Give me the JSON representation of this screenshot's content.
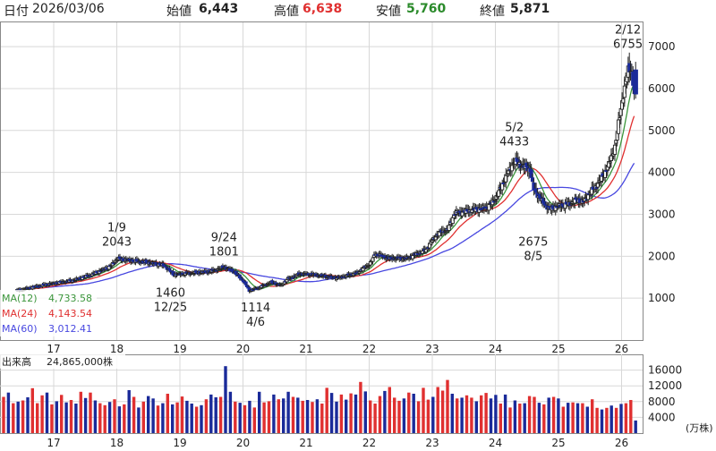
{
  "header": {
    "date_label": "日付",
    "date": "2026/03/06",
    "open_label": "始値",
    "open": "6,443",
    "high_label": "高値",
    "high": "6,638",
    "low_label": "安値",
    "low": "5,760",
    "close_label": "終値",
    "close": "5,871"
  },
  "colors": {
    "up": "#ffffff",
    "down": "#1a2a99",
    "ma12": "#3c963c",
    "ma24": "#e03030",
    "ma60": "#4848e0",
    "vol_up": "#e03030",
    "vol_down": "#1a2a99",
    "high_value": "#e03030",
    "low_value": "#2a8a2a"
  },
  "legend": {
    "ma12_label": "MA(12)",
    "ma12_value": "4,733.58",
    "ma24_label": "MA(24)",
    "ma24_value": "4,143.54",
    "ma60_label": "MA(60)",
    "ma60_value": "3,012.41"
  },
  "volume_panel": {
    "label": "出来高",
    "value": "24,865,000株",
    "unit": "(万株)"
  },
  "chart_data": [
    {
      "type": "candlestick",
      "ylim": [
        0,
        7600
      ],
      "y_ticks": [
        1000,
        2000,
        3000,
        4000,
        5000,
        6000,
        7000
      ],
      "x_ticks": [
        "17",
        "18",
        "19",
        "20",
        "21",
        "22",
        "23",
        "24",
        "25",
        "26"
      ],
      "annotations": [
        {
          "date": "1/9",
          "value": "2043",
          "t": 1.0,
          "v": 2043,
          "side": "above"
        },
        {
          "date": "12/25",
          "value": "1460",
          "t": 1.85,
          "v": 1460,
          "side": "below"
        },
        {
          "date": "9/24",
          "value": "1801",
          "t": 2.7,
          "v": 1801,
          "side": "above"
        },
        {
          "date": "4/6",
          "value": "1114",
          "t": 3.2,
          "v": 1114,
          "side": "below"
        },
        {
          "date": "5/2",
          "value": "4433",
          "t": 7.3,
          "v": 4433,
          "side": "above"
        },
        {
          "date": "8/5",
          "value": "2675",
          "t": 7.6,
          "v": 2675,
          "side": "below"
        },
        {
          "date": "2/12",
          "value": "6755",
          "t": 9.1,
          "v": 6755,
          "side": "above"
        }
      ],
      "close_path": [
        [
          -0.6,
          1180
        ],
        [
          -0.1,
          1330
        ],
        [
          0.3,
          1420
        ],
        [
          0.6,
          1560
        ],
        [
          0.9,
          1760
        ],
        [
          1.0,
          1940
        ],
        [
          1.2,
          1900
        ],
        [
          1.5,
          1850
        ],
        [
          1.75,
          1780
        ],
        [
          1.9,
          1560
        ],
        [
          2.2,
          1600
        ],
        [
          2.5,
          1640
        ],
        [
          2.7,
          1740
        ],
        [
          2.85,
          1640
        ],
        [
          3.0,
          1420
        ],
        [
          3.1,
          1180
        ],
        [
          3.25,
          1250
        ],
        [
          3.45,
          1380
        ],
        [
          3.6,
          1300
        ],
        [
          3.7,
          1450
        ],
        [
          3.9,
          1580
        ],
        [
          4.1,
          1560
        ],
        [
          4.3,
          1520
        ],
        [
          4.5,
          1480
        ],
        [
          4.8,
          1600
        ],
        [
          5.0,
          1800
        ],
        [
          5.1,
          2060
        ],
        [
          5.3,
          1950
        ],
        [
          5.6,
          1950
        ],
        [
          5.75,
          2050
        ],
        [
          5.9,
          2150
        ],
        [
          6.0,
          2380
        ],
        [
          6.1,
          2550
        ],
        [
          6.25,
          2650
        ],
        [
          6.35,
          3020
        ],
        [
          6.5,
          3060
        ],
        [
          6.7,
          3120
        ],
        [
          6.85,
          3150
        ],
        [
          6.95,
          3270
        ],
        [
          7.05,
          3520
        ],
        [
          7.15,
          3850
        ],
        [
          7.3,
          4280
        ],
        [
          7.45,
          4140
        ],
        [
          7.55,
          4070
        ],
        [
          7.6,
          3620
        ],
        [
          7.7,
          3400
        ],
        [
          7.85,
          3120
        ],
        [
          8.0,
          3200
        ],
        [
          8.15,
          3240
        ],
        [
          8.3,
          3340
        ],
        [
          8.4,
          3300
        ],
        [
          8.5,
          3520
        ],
        [
          8.6,
          3680
        ],
        [
          8.7,
          3900
        ],
        [
          8.8,
          4200
        ],
        [
          8.9,
          4650
        ],
        [
          8.95,
          5150
        ],
        [
          9.0,
          5650
        ],
        [
          9.05,
          6020
        ],
        [
          9.1,
          6450
        ],
        [
          9.15,
          6500
        ],
        [
          9.2,
          5900
        ]
      ],
      "volume": {
        "ylim": [
          0,
          20000
        ],
        "y_ticks": [
          4000,
          8000,
          12000,
          16000
        ],
        "values": [
          9200,
          10300,
          7600,
          8000,
          8300,
          9100,
          11400,
          7600,
          9600,
          10300,
          7300,
          8100,
          9700,
          7800,
          8400,
          7500,
          10500,
          8900,
          10300,
          8300,
          7600,
          7100,
          7900,
          8600,
          6800,
          7300,
          10900,
          9200,
          6500,
          8000,
          9400,
          8800,
          7000,
          7600,
          10000,
          7300,
          7800,
          9300,
          8200,
          7500,
          6700,
          7100,
          8600,
          9800,
          9100,
          9200,
          17000,
          10500,
          8000,
          7700,
          7100,
          8200,
          6500,
          10500,
          7800,
          8100,
          9800,
          8600,
          8800,
          10500,
          9200,
          9000,
          8200,
          8400,
          7900,
          8600,
          7500,
          11500,
          10200,
          8000,
          9800,
          8500,
          10100,
          9800,
          13000,
          10600,
          8300,
          7500,
          9400,
          10700,
          11700,
          9000,
          8200,
          8800,
          10300,
          10000,
          8100,
          11500,
          8500,
          9200,
          11700,
          10800,
          13500,
          10000,
          8800,
          9000,
          9600,
          9000,
          8100,
          9600,
          10200,
          8800,
          9700,
          7500,
          9800,
          6500,
          8300,
          7500,
          7600,
          9400,
          9200,
          7700,
          7300,
          9000,
          9200,
          8800,
          6700,
          7700,
          7800,
          7600,
          7600,
          6700,
          8600,
          6400,
          6000,
          6400,
          7000,
          6400,
          7400,
          7600,
          8400,
          3200
        ],
        "up_pattern": [
          1,
          0,
          1,
          0,
          1,
          0,
          1,
          1,
          1,
          0,
          1,
          0,
          1,
          0,
          1,
          0,
          1,
          0,
          1,
          0,
          1,
          1,
          0,
          1,
          0,
          1,
          0,
          1,
          0,
          1,
          0,
          0,
          1,
          0,
          1,
          0,
          1,
          1,
          0,
          0,
          1,
          0,
          1,
          0,
          0,
          1,
          0,
          0,
          1,
          0,
          1,
          0,
          1,
          0,
          1,
          1,
          0,
          1,
          0,
          0,
          1,
          0,
          1,
          0,
          1,
          0,
          1,
          1,
          0,
          0,
          1,
          0,
          1,
          0,
          1,
          0,
          1,
          1,
          1,
          0,
          1,
          1,
          1,
          0,
          1,
          0,
          1,
          1,
          1,
          0,
          1,
          1,
          1,
          0,
          1,
          0,
          1,
          1,
          0,
          1,
          1,
          0,
          0,
          1,
          0,
          1,
          0,
          1,
          0,
          1,
          1,
          0,
          1,
          0,
          1,
          0,
          1,
          0,
          1,
          0,
          1,
          0,
          1,
          1,
          0,
          1,
          0,
          1,
          0,
          1,
          1,
          0
        ]
      }
    }
  ]
}
